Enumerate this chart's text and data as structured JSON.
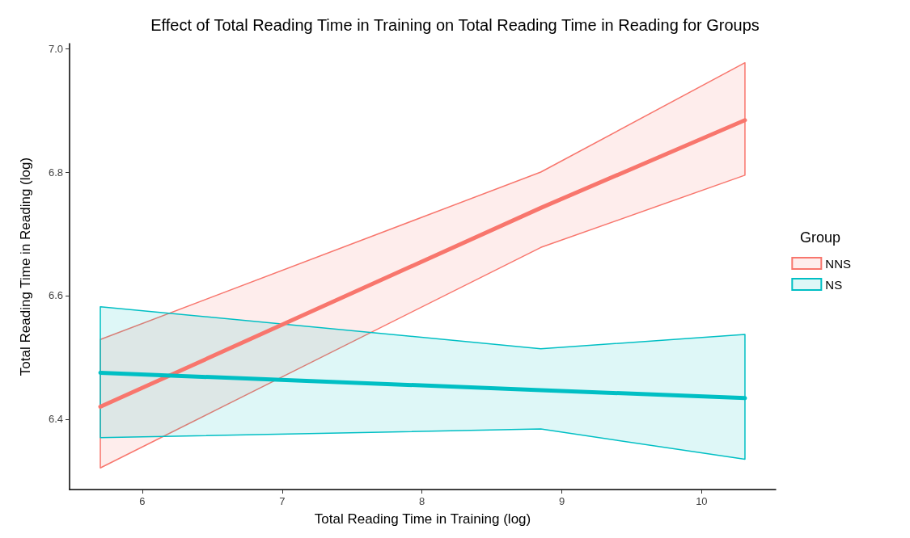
{
  "chart_data": {
    "type": "line",
    "title": "Effect of Total Reading Time in Training on Total Reading Time in Reading for Groups",
    "xlabel": "Total Reading Time in Training (log)",
    "ylabel": "Total Reading Time in Reading (log)",
    "legend_title": "Group",
    "legend": "right",
    "grid": false,
    "marker": "none",
    "x": [
      5.7,
      8.85,
      10.31
    ],
    "series": [
      {
        "name": "NNS",
        "color": "#f8766d",
        "values": [
          6.42,
          6.742,
          6.884
        ],
        "lower": [
          6.321,
          6.678,
          6.795
        ],
        "upper": [
          6.529,
          6.8,
          6.977
        ]
      },
      {
        "name": "NS",
        "color": "#00bfc4",
        "values": [
          6.475,
          6.447,
          6.434
        ],
        "lower": [
          6.37,
          6.384,
          6.335
        ],
        "upper": [
          6.582,
          6.514,
          6.537
        ]
      }
    ],
    "xlim": [
      5.48,
      10.53
    ],
    "xticks": [
      6,
      7,
      8,
      9,
      10
    ],
    "ylim": [
      6.286,
      7.008
    ],
    "yticks": [
      6.4,
      6.6,
      6.8,
      {
        "value": 7,
        "label": "7.0"
      }
    ]
  }
}
